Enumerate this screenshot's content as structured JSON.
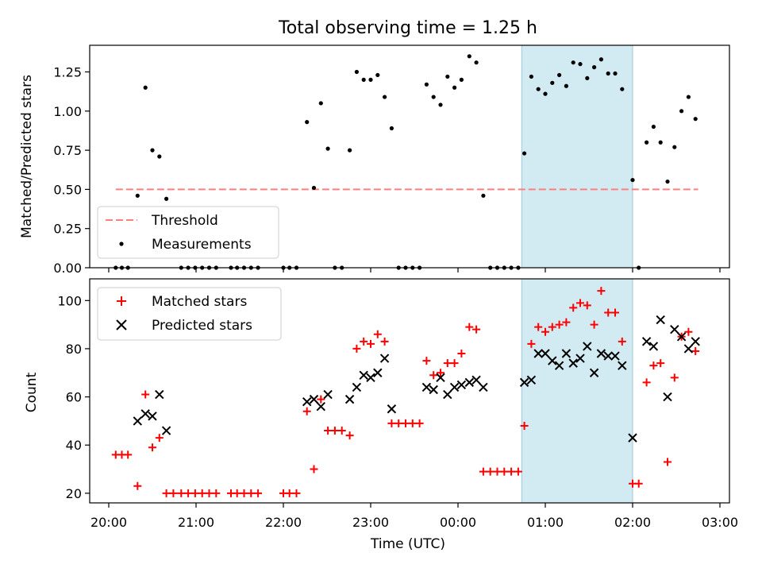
{
  "title": "Total observing time = 1.25 h",
  "xlabel": "Time (UTC)",
  "x_ticks": [
    "20:00",
    "21:00",
    "22:00",
    "23:00",
    "00:00",
    "01:00",
    "02:00",
    "03:00"
  ],
  "colors": {
    "threshold": "#ff7f7f",
    "measurements": "#000000",
    "matched": "#ff0000",
    "predicted": "#000000",
    "window": "#add8e6"
  },
  "chart_data": [
    {
      "type": "scatter",
      "ylabel": "Matched/Predicted stars",
      "ylim": [
        0,
        1.42
      ],
      "yticks": [
        "0.00",
        "0.25",
        "0.50",
        "0.75",
        "1.00",
        "1.25"
      ],
      "x_unit": "hours since 20:00 UTC",
      "shaded_window_x": [
        4.73,
        6.0
      ],
      "threshold": {
        "name": "Threshold",
        "value": 0.5,
        "x_range": [
          0.08,
          6.75
        ]
      },
      "legend": [
        "Threshold",
        "Measurements"
      ],
      "legend_position": "lower left",
      "series": [
        {
          "name": "Measurements",
          "points": [
            [
              0.08,
              0
            ],
            [
              0.15,
              0
            ],
            [
              0.22,
              0
            ],
            [
              0.33,
              0.46
            ],
            [
              0.42,
              1.15
            ],
            [
              0.5,
              0.75
            ],
            [
              0.58,
              0.71
            ],
            [
              0.66,
              0.44
            ],
            [
              0.83,
              0
            ],
            [
              0.91,
              0
            ],
            [
              0.99,
              0
            ],
            [
              1.07,
              0
            ],
            [
              1.15,
              0
            ],
            [
              1.23,
              0
            ],
            [
              1.4,
              0
            ],
            [
              1.47,
              0
            ],
            [
              1.55,
              0
            ],
            [
              1.63,
              0
            ],
            [
              1.71,
              0
            ],
            [
              2.0,
              0
            ],
            [
              2.07,
              0
            ],
            [
              2.15,
              0
            ],
            [
              2.27,
              0.93
            ],
            [
              2.35,
              0.51
            ],
            [
              2.43,
              1.05
            ],
            [
              2.51,
              0.76
            ],
            [
              2.59,
              0
            ],
            [
              2.67,
              0
            ],
            [
              2.76,
              0.75
            ],
            [
              2.84,
              1.25
            ],
            [
              2.92,
              1.2
            ],
            [
              3.0,
              1.2
            ],
            [
              3.08,
              1.23
            ],
            [
              3.16,
              1.09
            ],
            [
              3.24,
              0.89
            ],
            [
              3.32,
              0
            ],
            [
              3.4,
              0
            ],
            [
              3.48,
              0
            ],
            [
              3.56,
              0
            ],
            [
              3.64,
              1.17
            ],
            [
              3.72,
              1.09
            ],
            [
              3.8,
              1.04
            ],
            [
              3.88,
              1.22
            ],
            [
              3.96,
              1.15
            ],
            [
              4.04,
              1.2
            ],
            [
              4.13,
              1.35
            ],
            [
              4.21,
              1.31
            ],
            [
              4.29,
              0.46
            ],
            [
              4.37,
              0
            ],
            [
              4.45,
              0
            ],
            [
              4.53,
              0
            ],
            [
              4.61,
              0
            ],
            [
              4.69,
              0
            ],
            [
              4.76,
              0.73
            ],
            [
              4.84,
              1.22
            ],
            [
              4.92,
              1.14
            ],
            [
              5.0,
              1.11
            ],
            [
              5.08,
              1.18
            ],
            [
              5.16,
              1.23
            ],
            [
              5.24,
              1.16
            ],
            [
              5.32,
              1.31
            ],
            [
              5.4,
              1.3
            ],
            [
              5.48,
              1.21
            ],
            [
              5.56,
              1.28
            ],
            [
              5.64,
              1.33
            ],
            [
              5.72,
              1.24
            ],
            [
              5.8,
              1.24
            ],
            [
              5.88,
              1.14
            ],
            [
              6.0,
              0.56
            ],
            [
              6.07,
              0
            ],
            [
              6.16,
              0.8
            ],
            [
              6.24,
              0.9
            ],
            [
              6.32,
              0.8
            ],
            [
              6.4,
              0.55
            ],
            [
              6.48,
              0.77
            ],
            [
              6.56,
              1.0
            ],
            [
              6.64,
              1.09
            ],
            [
              6.72,
              0.95
            ]
          ]
        }
      ]
    },
    {
      "type": "scatter",
      "ylabel": "Count",
      "ylim": [
        16,
        109
      ],
      "yticks": [
        "20",
        "40",
        "60",
        "80",
        "100"
      ],
      "x_unit": "hours since 20:00 UTC",
      "shaded_window_x": [
        4.73,
        6.0
      ],
      "legend": [
        "Matched stars",
        "Predicted stars"
      ],
      "legend_position": "upper left",
      "series": [
        {
          "name": "Matched stars",
          "points": [
            [
              0.08,
              36
            ],
            [
              0.15,
              36
            ],
            [
              0.22,
              36
            ],
            [
              0.33,
              23
            ],
            [
              0.42,
              61
            ],
            [
              0.5,
              39
            ],
            [
              0.58,
              43
            ],
            [
              0.66,
              20
            ],
            [
              0.74,
              20
            ],
            [
              0.83,
              20
            ],
            [
              0.91,
              20
            ],
            [
              0.99,
              20
            ],
            [
              1.07,
              20
            ],
            [
              1.15,
              20
            ],
            [
              1.23,
              20
            ],
            [
              1.4,
              20
            ],
            [
              1.47,
              20
            ],
            [
              1.55,
              20
            ],
            [
              1.63,
              20
            ],
            [
              1.71,
              20
            ],
            [
              2.0,
              20
            ],
            [
              2.07,
              20
            ],
            [
              2.15,
              20
            ],
            [
              2.27,
              54
            ],
            [
              2.35,
              30
            ],
            [
              2.43,
              59
            ],
            [
              2.51,
              46
            ],
            [
              2.59,
              46
            ],
            [
              2.67,
              46
            ],
            [
              2.76,
              44
            ],
            [
              2.84,
              80
            ],
            [
              2.92,
              83
            ],
            [
              3.0,
              82
            ],
            [
              3.08,
              86
            ],
            [
              3.16,
              83
            ],
            [
              3.24,
              49
            ],
            [
              3.32,
              49
            ],
            [
              3.4,
              49
            ],
            [
              3.48,
              49
            ],
            [
              3.56,
              49
            ],
            [
              3.64,
              75
            ],
            [
              3.72,
              69
            ],
            [
              3.8,
              70
            ],
            [
              3.88,
              74
            ],
            [
              3.96,
              74
            ],
            [
              4.04,
              78
            ],
            [
              4.13,
              89
            ],
            [
              4.21,
              88
            ],
            [
              4.29,
              29
            ],
            [
              4.37,
              29
            ],
            [
              4.45,
              29
            ],
            [
              4.53,
              29
            ],
            [
              4.61,
              29
            ],
            [
              4.69,
              29
            ],
            [
              4.76,
              48
            ],
            [
              4.84,
              82
            ],
            [
              4.92,
              89
            ],
            [
              5.0,
              87
            ],
            [
              5.08,
              89
            ],
            [
              5.16,
              90
            ],
            [
              5.24,
              91
            ],
            [
              5.32,
              97
            ],
            [
              5.4,
              99
            ],
            [
              5.48,
              98
            ],
            [
              5.56,
              90
            ],
            [
              5.64,
              104
            ],
            [
              5.72,
              95
            ],
            [
              5.8,
              95
            ],
            [
              5.88,
              83
            ],
            [
              6.0,
              24
            ],
            [
              6.07,
              24
            ],
            [
              6.16,
              66
            ],
            [
              6.24,
              73
            ],
            [
              6.32,
              74
            ],
            [
              6.4,
              33
            ],
            [
              6.48,
              68
            ],
            [
              6.56,
              85
            ],
            [
              6.64,
              87
            ],
            [
              6.72,
              79
            ]
          ]
        },
        {
          "name": "Predicted stars",
          "points": [
            [
              0.33,
              50
            ],
            [
              0.42,
              53
            ],
            [
              0.5,
              52
            ],
            [
              0.58,
              61
            ],
            [
              0.66,
              46
            ],
            [
              2.27,
              58
            ],
            [
              2.35,
              59
            ],
            [
              2.43,
              56
            ],
            [
              2.51,
              61
            ],
            [
              2.76,
              59
            ],
            [
              2.84,
              64
            ],
            [
              2.92,
              69
            ],
            [
              3.0,
              68
            ],
            [
              3.08,
              70
            ],
            [
              3.16,
              76
            ],
            [
              3.24,
              55
            ],
            [
              3.64,
              64
            ],
            [
              3.72,
              63
            ],
            [
              3.8,
              68
            ],
            [
              3.88,
              61
            ],
            [
              3.96,
              64
            ],
            [
              4.04,
              65
            ],
            [
              4.13,
              66
            ],
            [
              4.21,
              67
            ],
            [
              4.29,
              64
            ],
            [
              4.76,
              66
            ],
            [
              4.84,
              67
            ],
            [
              4.92,
              78
            ],
            [
              5.0,
              78
            ],
            [
              5.08,
              75
            ],
            [
              5.16,
              73
            ],
            [
              5.24,
              78
            ],
            [
              5.32,
              74
            ],
            [
              5.4,
              76
            ],
            [
              5.48,
              81
            ],
            [
              5.56,
              70
            ],
            [
              5.64,
              78
            ],
            [
              5.72,
              77
            ],
            [
              5.8,
              77
            ],
            [
              5.88,
              73
            ],
            [
              6.0,
              43
            ],
            [
              6.16,
              83
            ],
            [
              6.24,
              81
            ],
            [
              6.32,
              92
            ],
            [
              6.4,
              60
            ],
            [
              6.48,
              88
            ],
            [
              6.56,
              85
            ],
            [
              6.64,
              80
            ],
            [
              6.72,
              83
            ]
          ]
        }
      ]
    }
  ]
}
